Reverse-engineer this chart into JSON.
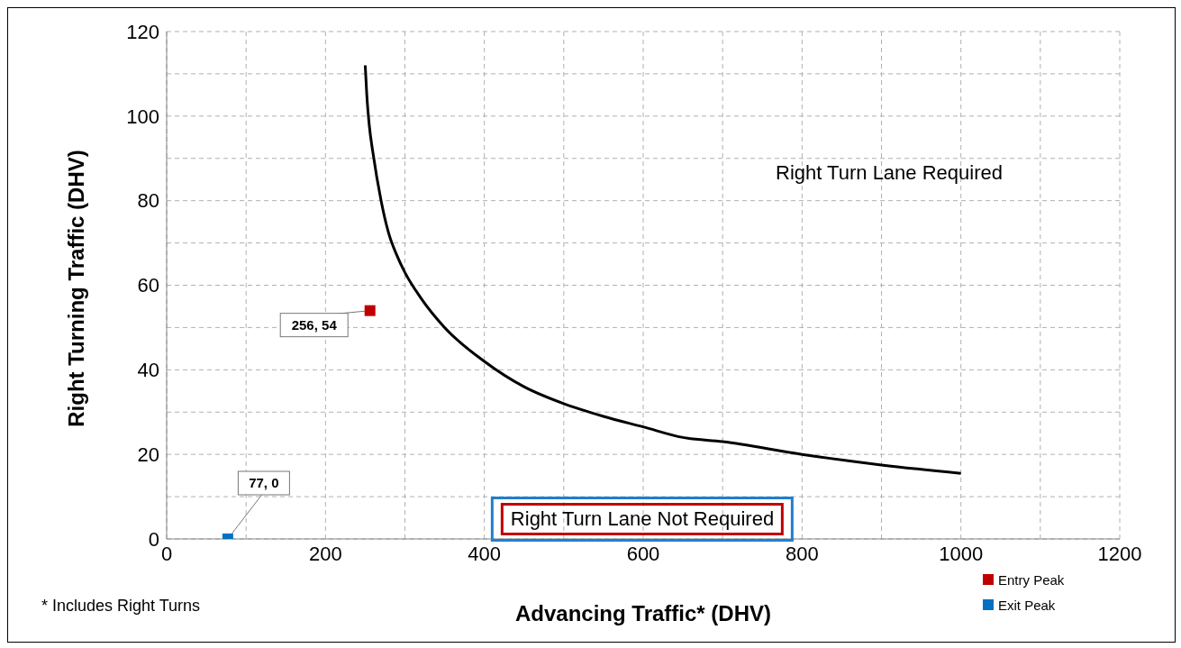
{
  "chart_data": {
    "type": "line",
    "xlabel": "Advancing Traffic* (DHV)",
    "ylabel": "Right Turning Traffic (DHV)",
    "xlim": [
      0,
      1200
    ],
    "ylim": [
      0,
      120
    ],
    "xticks": [
      0,
      {
        "value": 100,
        "label": null
      },
      200,
      {
        "value": 300,
        "label": null
      },
      400,
      {
        "value": 500,
        "label": null
      },
      600,
      {
        "value": 700,
        "label": null
      },
      800,
      {
        "value": 900,
        "label": null
      },
      1000,
      {
        "value": 1100,
        "label": null
      },
      1200
    ],
    "yticks": [
      0,
      {
        "value": 10,
        "label": null
      },
      20,
      {
        "value": 30,
        "label": null
      },
      40,
      {
        "value": 50,
        "label": null
      },
      60,
      {
        "value": 70,
        "label": null
      },
      80,
      {
        "value": 90,
        "label": null
      },
      100,
      {
        "value": 110,
        "label": null
      },
      120
    ],
    "grid": true,
    "legend": "bottom right",
    "series": [
      {
        "color": "#000000",
        "marker": "none",
        "x": [
          250,
          252,
          255,
          260,
          270,
          280,
          290,
          300,
          320,
          350,
          400,
          450,
          500,
          550,
          600,
          650,
          700,
          800,
          900,
          1000
        ],
        "values": [
          112,
          105,
          98,
          91,
          80,
          72,
          67,
          63,
          57,
          50,
          42,
          36,
          32,
          29,
          26.5,
          24,
          23,
          20,
          17.5,
          15.5
        ]
      },
      {
        "type": "scatter",
        "name": "Entry Peak",
        "color": "#c00000",
        "marker": "square",
        "x": [
          256
        ],
        "values": [
          54
        ],
        "value_labels": [
          "256, 54"
        ]
      },
      {
        "type": "scatter",
        "name": "Exit Peak",
        "color": "#0070c0",
        "marker": "square",
        "x": [
          77
        ],
        "values": [
          0
        ],
        "value_labels": [
          "77, 0"
        ]
      }
    ],
    "annotations": [
      "Right Turn Lane Required",
      "Right Turn Lane Not Required",
      "* Includes Right Turns"
    ]
  }
}
